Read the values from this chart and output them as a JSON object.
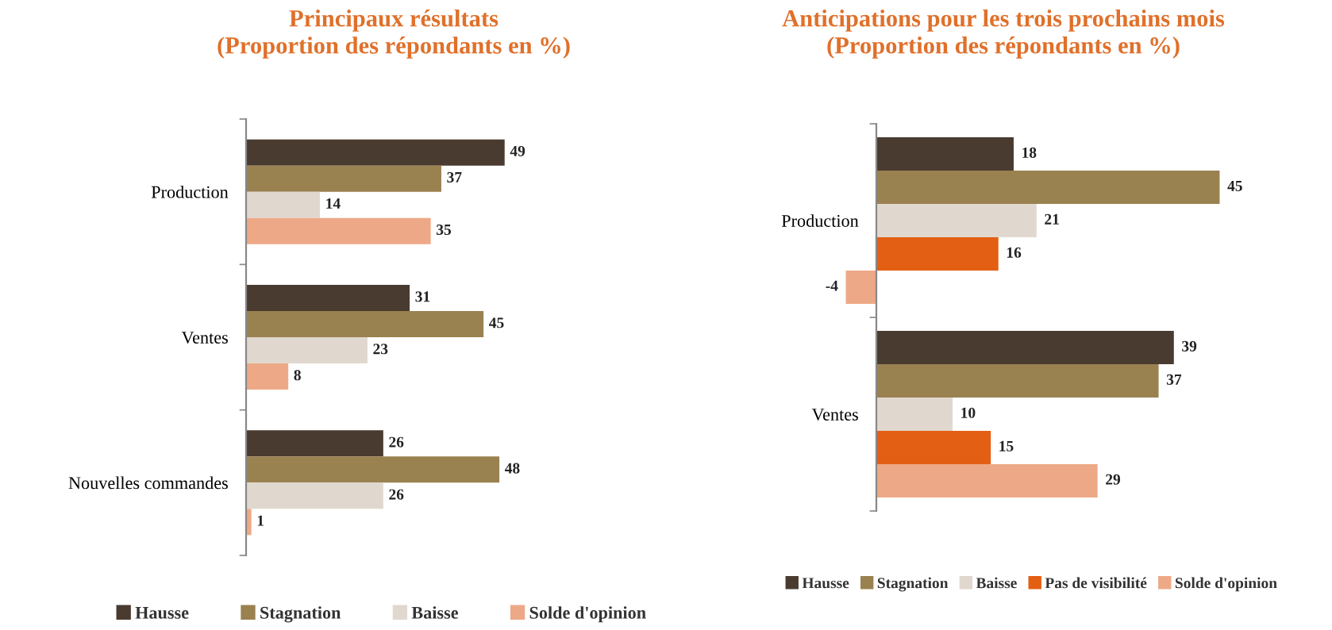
{
  "chart_data": [
    {
      "type": "bar",
      "orientation": "horizontal",
      "title": "Principaux résultats\n(Proportion des répondants en %)",
      "categories": [
        "Production",
        "Ventes",
        "Nouvelles commandes"
      ],
      "data_labels": true,
      "legend": "bottom",
      "grid": false,
      "series": [
        {
          "name": "Hausse",
          "color": "#4a3b30",
          "values": [
            49,
            31,
            26
          ]
        },
        {
          "name": "Stagnation",
          "color": "#9a8150",
          "values": [
            37,
            45,
            48
          ]
        },
        {
          "name": "Baisse",
          "color": "#e0d8cf",
          "values": [
            14,
            23,
            26
          ]
        },
        {
          "name": "Solde d'opinion",
          "color": "#eda987",
          "values": [
            35,
            8,
            1
          ]
        }
      ]
    },
    {
      "type": "bar",
      "orientation": "horizontal",
      "title": "Anticipations pour les trois prochains mois\n(Proportion des répondants en %)",
      "categories": [
        "Production",
        "Ventes"
      ],
      "data_labels": true,
      "legend": "bottom",
      "grid": false,
      "series": [
        {
          "name": "Hausse",
          "color": "#4a3b30",
          "values": [
            18,
            39
          ]
        },
        {
          "name": "Stagnation",
          "color": "#9a8150",
          "values": [
            45,
            37
          ]
        },
        {
          "name": "Baisse",
          "color": "#e0d8cf",
          "values": [
            21,
            10
          ]
        },
        {
          "name": "Pas de visibilité",
          "color": "#e35f14",
          "values": [
            16,
            15
          ]
        },
        {
          "name": "Solde d'opinion",
          "color": "#eda987",
          "values": [
            -4,
            29
          ]
        }
      ]
    }
  ]
}
